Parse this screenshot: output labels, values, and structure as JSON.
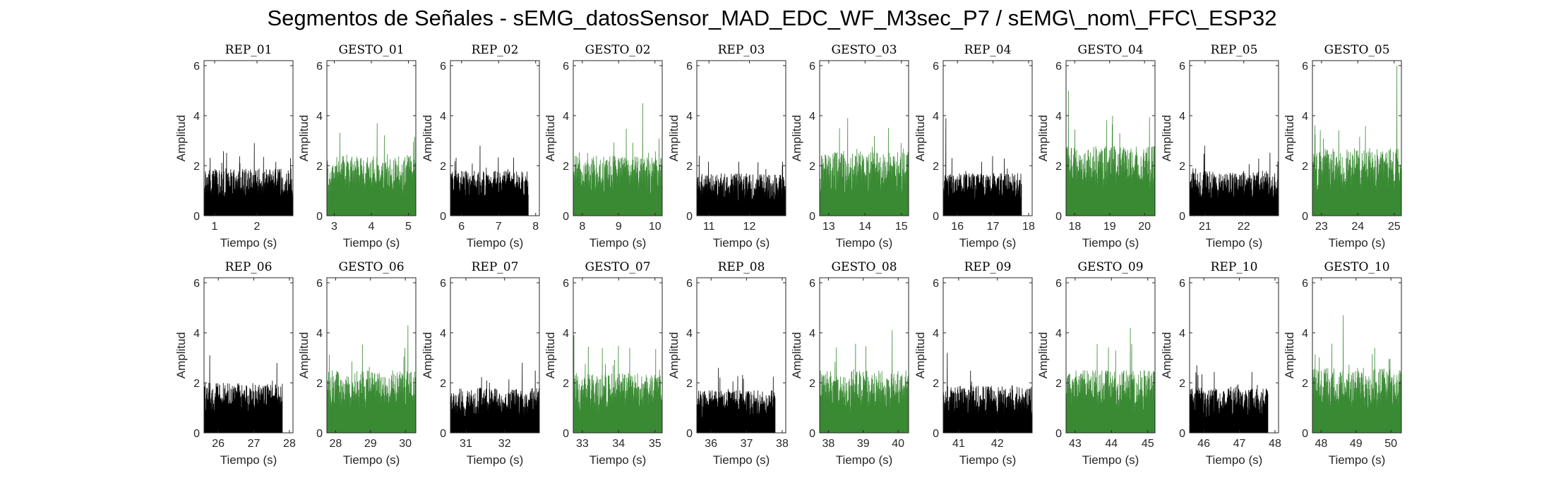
{
  "figure": {
    "suptitle": "Segmentos de Señales - sEMG_datosSensor_MAD_EDC_WF_M3sec_P7 / sEMG\\_nom\\_FFC\\_ESP32"
  },
  "colors": {
    "rep": "#000000",
    "gesto": "#3a8a34"
  },
  "chart_data": [
    {
      "type": "area",
      "title": "REP_01",
      "xlabel": "Tiempo (s)",
      "ylabel": "Amplitud",
      "xlim": [
        0.75,
        2.85
      ],
      "ylim": [
        0,
        6.2
      ],
      "xticks": [
        1,
        2
      ],
      "yticks": [
        0,
        2,
        4,
        6
      ],
      "series": [
        {
          "name": "REP_01",
          "color": "#000000",
          "t_start": 0.75,
          "t_end": 2.85,
          "typical_max": 1.9,
          "peak": 2.9
        }
      ]
    },
    {
      "type": "area",
      "title": "GESTO_01",
      "xlabel": "Tiempo (s)",
      "ylabel": "Amplitud",
      "xlim": [
        2.8,
        5.2
      ],
      "ylim": [
        0,
        6.2
      ],
      "xticks": [
        3,
        4,
        5
      ],
      "yticks": [
        0,
        2,
        4,
        6
      ],
      "series": [
        {
          "name": "GESTO_01",
          "color": "#3a8a34",
          "t_start": 2.8,
          "t_end": 5.2,
          "typical_max": 2.4,
          "peak": 3.7
        }
      ]
    },
    {
      "type": "area",
      "title": "REP_02",
      "xlabel": "Tiempo (s)",
      "ylabel": "Amplitud",
      "xlim": [
        5.7,
        8.1
      ],
      "ylim": [
        0,
        6.2
      ],
      "xticks": [
        6,
        7,
        8
      ],
      "yticks": [
        0,
        2,
        4,
        6
      ],
      "series": [
        {
          "name": "REP_02",
          "color": "#000000",
          "t_start": 5.7,
          "t_end": 7.8,
          "typical_max": 1.8,
          "peak": 2.8
        }
      ]
    },
    {
      "type": "area",
      "title": "GESTO_02",
      "xlabel": "Tiempo (s)",
      "ylabel": "Amplitud",
      "xlim": [
        7.75,
        10.2
      ],
      "ylim": [
        0,
        6.2
      ],
      "xticks": [
        8,
        9,
        10
      ],
      "yticks": [
        0,
        2,
        4,
        6
      ],
      "series": [
        {
          "name": "GESTO_02",
          "color": "#3a8a34",
          "t_start": 7.75,
          "t_end": 10.2,
          "typical_max": 2.4,
          "peak": 4.5
        }
      ]
    },
    {
      "type": "area",
      "title": "REP_03",
      "xlabel": "Tiempo (s)",
      "ylabel": "Amplitud",
      "xlim": [
        10.7,
        12.9
      ],
      "ylim": [
        0,
        6.2
      ],
      "xticks": [
        11,
        12
      ],
      "yticks": [
        0,
        2,
        4,
        6
      ],
      "series": [
        {
          "name": "REP_03",
          "color": "#000000",
          "t_start": 10.7,
          "t_end": 12.9,
          "typical_max": 1.7,
          "peak": 2.4
        }
      ]
    },
    {
      "type": "area",
      "title": "GESTO_03",
      "xlabel": "Tiempo (s)",
      "ylabel": "Amplitud",
      "xlim": [
        12.75,
        15.2
      ],
      "ylim": [
        0,
        6.2
      ],
      "xticks": [
        13,
        14,
        15
      ],
      "yticks": [
        0,
        2,
        4,
        6
      ],
      "series": [
        {
          "name": "GESTO_03",
          "color": "#3a8a34",
          "t_start": 12.75,
          "t_end": 15.2,
          "typical_max": 2.6,
          "peak": 3.9
        }
      ]
    },
    {
      "type": "area",
      "title": "REP_04",
      "xlabel": "Tiempo (s)",
      "ylabel": "Amplitud",
      "xlim": [
        15.6,
        18.1
      ],
      "ylim": [
        0,
        6.2
      ],
      "xticks": [
        16,
        17,
        18
      ],
      "yticks": [
        0,
        2,
        4,
        6
      ],
      "series": [
        {
          "name": "REP_04",
          "color": "#000000",
          "t_start": 15.6,
          "t_end": 17.8,
          "typical_max": 1.7,
          "peak": 3.9
        }
      ]
    },
    {
      "type": "area",
      "title": "GESTO_04",
      "xlabel": "Tiempo (s)",
      "ylabel": "Amplitud",
      "xlim": [
        17.75,
        20.3
      ],
      "ylim": [
        0,
        6.2
      ],
      "xticks": [
        18,
        19,
        20
      ],
      "yticks": [
        0,
        2,
        4,
        6
      ],
      "series": [
        {
          "name": "GESTO_04",
          "color": "#3a8a34",
          "t_start": 17.75,
          "t_end": 20.3,
          "typical_max": 2.8,
          "peak": 5.0
        }
      ]
    },
    {
      "type": "area",
      "title": "REP_05",
      "xlabel": "Tiempo (s)",
      "ylabel": "Amplitud",
      "xlim": [
        20.6,
        22.9
      ],
      "ylim": [
        0,
        6.2
      ],
      "xticks": [
        21,
        22
      ],
      "yticks": [
        0,
        2,
        4,
        6
      ],
      "series": [
        {
          "name": "REP_05",
          "color": "#000000",
          "t_start": 20.6,
          "t_end": 22.9,
          "typical_max": 1.8,
          "peak": 2.8
        }
      ]
    },
    {
      "type": "area",
      "title": "GESTO_05",
      "xlabel": "Tiempo (s)",
      "ylabel": "Amplitud",
      "xlim": [
        22.75,
        25.2
      ],
      "ylim": [
        0,
        6.2
      ],
      "xticks": [
        23,
        24,
        25
      ],
      "yticks": [
        0,
        2,
        4,
        6
      ],
      "series": [
        {
          "name": "GESTO_05",
          "color": "#3a8a34",
          "t_start": 22.75,
          "t_end": 25.2,
          "typical_max": 2.7,
          "peak": 6.0
        }
      ]
    },
    {
      "type": "area",
      "title": "REP_06",
      "xlabel": "Tiempo (s)",
      "ylabel": "Amplitud",
      "xlim": [
        25.6,
        28.1
      ],
      "ylim": [
        0,
        6.2
      ],
      "xticks": [
        26,
        27,
        28
      ],
      "yticks": [
        0,
        2,
        4,
        6
      ],
      "series": [
        {
          "name": "REP_06",
          "color": "#000000",
          "t_start": 25.6,
          "t_end": 27.8,
          "typical_max": 2.0,
          "peak": 3.1
        }
      ]
    },
    {
      "type": "area",
      "title": "GESTO_06",
      "xlabel": "Tiempo (s)",
      "ylabel": "Amplitud",
      "xlim": [
        27.75,
        30.3
      ],
      "ylim": [
        0,
        6.2
      ],
      "xticks": [
        28,
        29,
        30
      ],
      "yticks": [
        0,
        2,
        4,
        6
      ],
      "series": [
        {
          "name": "GESTO_06",
          "color": "#3a8a34",
          "t_start": 27.75,
          "t_end": 30.3,
          "typical_max": 2.5,
          "peak": 4.3
        }
      ]
    },
    {
      "type": "area",
      "title": "REP_07",
      "xlabel": "Tiempo (s)",
      "ylabel": "Amplitud",
      "xlim": [
        30.6,
        32.9
      ],
      "ylim": [
        0,
        6.2
      ],
      "xticks": [
        31,
        32
      ],
      "yticks": [
        0,
        2,
        4,
        6
      ],
      "series": [
        {
          "name": "REP_07",
          "color": "#000000",
          "t_start": 30.6,
          "t_end": 32.9,
          "typical_max": 1.8,
          "peak": 2.8
        }
      ]
    },
    {
      "type": "area",
      "title": "GESTO_07",
      "xlabel": "Tiempo (s)",
      "ylabel": "Amplitud",
      "xlim": [
        32.75,
        35.2
      ],
      "ylim": [
        0,
        6.2
      ],
      "xticks": [
        33,
        34,
        35
      ],
      "yticks": [
        0,
        2,
        4,
        6
      ],
      "series": [
        {
          "name": "GESTO_07",
          "color": "#3a8a34",
          "t_start": 32.75,
          "t_end": 35.2,
          "typical_max": 2.4,
          "peak": 3.9
        }
      ]
    },
    {
      "type": "area",
      "title": "REP_08",
      "xlabel": "Tiempo (s)",
      "ylabel": "Amplitud",
      "xlim": [
        35.6,
        38.1
      ],
      "ylim": [
        0,
        6.2
      ],
      "xticks": [
        36,
        37,
        38
      ],
      "yticks": [
        0,
        2,
        4,
        6
      ],
      "series": [
        {
          "name": "REP_08",
          "color": "#000000",
          "t_start": 35.6,
          "t_end": 37.8,
          "typical_max": 1.7,
          "peak": 2.6
        }
      ]
    },
    {
      "type": "area",
      "title": "GESTO_08",
      "xlabel": "Tiempo (s)",
      "ylabel": "Amplitud",
      "xlim": [
        37.75,
        40.3
      ],
      "ylim": [
        0,
        6.2
      ],
      "xticks": [
        38,
        39,
        40
      ],
      "yticks": [
        0,
        2,
        4,
        6
      ],
      "series": [
        {
          "name": "GESTO_08",
          "color": "#3a8a34",
          "t_start": 37.75,
          "t_end": 40.3,
          "typical_max": 2.5,
          "peak": 4.1
        }
      ]
    },
    {
      "type": "area",
      "title": "REP_09",
      "xlabel": "Tiempo (s)",
      "ylabel": "Amplitud",
      "xlim": [
        40.6,
        42.9
      ],
      "ylim": [
        0,
        6.2
      ],
      "xticks": [
        41,
        42
      ],
      "yticks": [
        0,
        2,
        4,
        6
      ],
      "series": [
        {
          "name": "REP_09",
          "color": "#000000",
          "t_start": 40.6,
          "t_end": 42.9,
          "typical_max": 1.9,
          "peak": 3.2
        }
      ]
    },
    {
      "type": "area",
      "title": "GESTO_09",
      "xlabel": "Tiempo (s)",
      "ylabel": "Amplitud",
      "xlim": [
        42.75,
        45.2
      ],
      "ylim": [
        0,
        6.2
      ],
      "xticks": [
        43,
        44,
        45
      ],
      "yticks": [
        0,
        2,
        4,
        6
      ],
      "series": [
        {
          "name": "GESTO_09",
          "color": "#3a8a34",
          "t_start": 42.75,
          "t_end": 45.2,
          "typical_max": 2.5,
          "peak": 4.2
        }
      ]
    },
    {
      "type": "area",
      "title": "REP_10",
      "xlabel": "Tiempo (s)",
      "ylabel": "Amplitud",
      "xlim": [
        45.6,
        48.1
      ],
      "ylim": [
        0,
        6.2
      ],
      "xticks": [
        46,
        47,
        48
      ],
      "yticks": [
        0,
        2,
        4,
        6
      ],
      "series": [
        {
          "name": "REP_10",
          "color": "#000000",
          "t_start": 45.6,
          "t_end": 47.8,
          "typical_max": 1.8,
          "peak": 2.7
        }
      ]
    },
    {
      "type": "area",
      "title": "GESTO_10",
      "xlabel": "Tiempo (s)",
      "ylabel": "Amplitud",
      "xlim": [
        47.75,
        50.3
      ],
      "ylim": [
        0,
        6.2
      ],
      "xticks": [
        48,
        49,
        50
      ],
      "yticks": [
        0,
        2,
        4,
        6
      ],
      "series": [
        {
          "name": "GESTO_10",
          "color": "#3a8a34",
          "t_start": 47.75,
          "t_end": 50.3,
          "typical_max": 2.6,
          "peak": 4.7
        }
      ]
    }
  ]
}
